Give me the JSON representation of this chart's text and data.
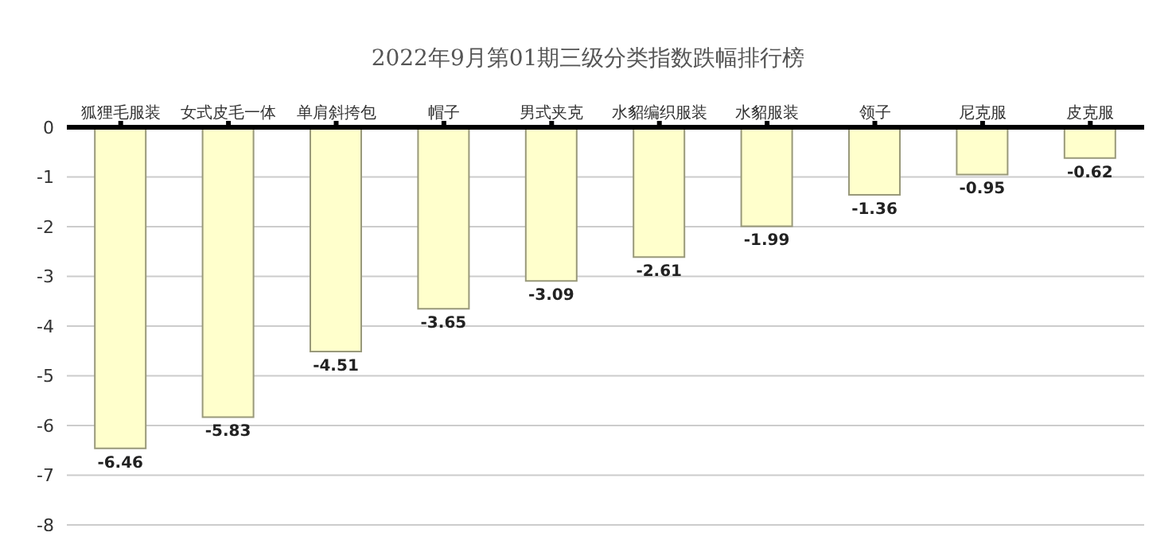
{
  "chart_data": {
    "type": "bar",
    "title": "2022年9月第01期三级分类指数跌幅排行榜",
    "categories": [
      "狐狸毛服装",
      "女式皮毛一体",
      "单肩斜挎包",
      "帽子",
      "男式夹克",
      "水貂编织服装",
      "水貂服装",
      "领子",
      "尼克服",
      "皮克服"
    ],
    "values": [
      -6.46,
      -5.83,
      -4.51,
      -3.65,
      -3.09,
      -2.61,
      -1.99,
      -1.36,
      -0.95,
      -0.62
    ],
    "color": "#ffffcc",
    "ylim": [
      -8,
      0
    ],
    "yticks": [
      -8,
      -7,
      -6,
      -5,
      -4,
      -3,
      -2,
      -1,
      0
    ],
    "grid": "y",
    "data_labels": true
  }
}
